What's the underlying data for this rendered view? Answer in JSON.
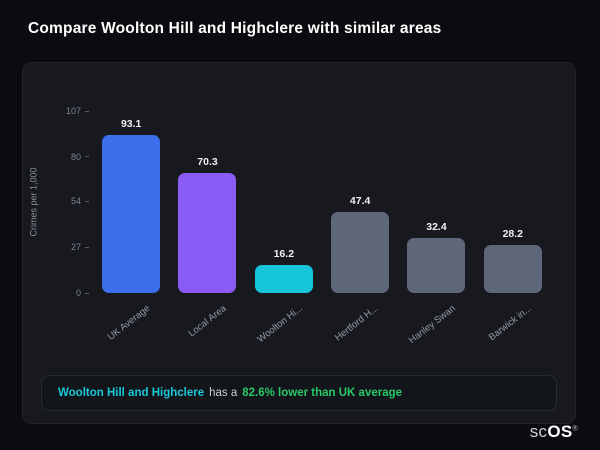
{
  "page": {
    "title": "Compare Woolton Hill and Highclere with similar areas"
  },
  "chart_data": {
    "type": "bar",
    "title": "",
    "xlabel": "",
    "ylabel": "Crimes per 1,000",
    "ylim": [
      0,
      107
    ],
    "yticks": [
      0,
      27,
      54,
      80,
      107
    ],
    "grid": false,
    "legend": "none",
    "categories": [
      "UK Average",
      "Local Area",
      "Woolton Hi...",
      "Hertford H...",
      "Hanley Swan",
      "Barwick in..."
    ],
    "values": [
      93.1,
      70.3,
      16.2,
      47.4,
      32.4,
      28.2
    ],
    "bar_colors": [
      "#3d6ee9",
      "#8a5cf5",
      "#16c5d8",
      "#5d6779",
      "#5d6779",
      "#5d6779"
    ]
  },
  "note": {
    "highlight": "Woolton Hill and Highclere",
    "middle": "has a",
    "stat": "82.6% lower than UK average"
  },
  "branding": {
    "prefix": "sc",
    "suffix": "OS",
    "registered": "®"
  }
}
